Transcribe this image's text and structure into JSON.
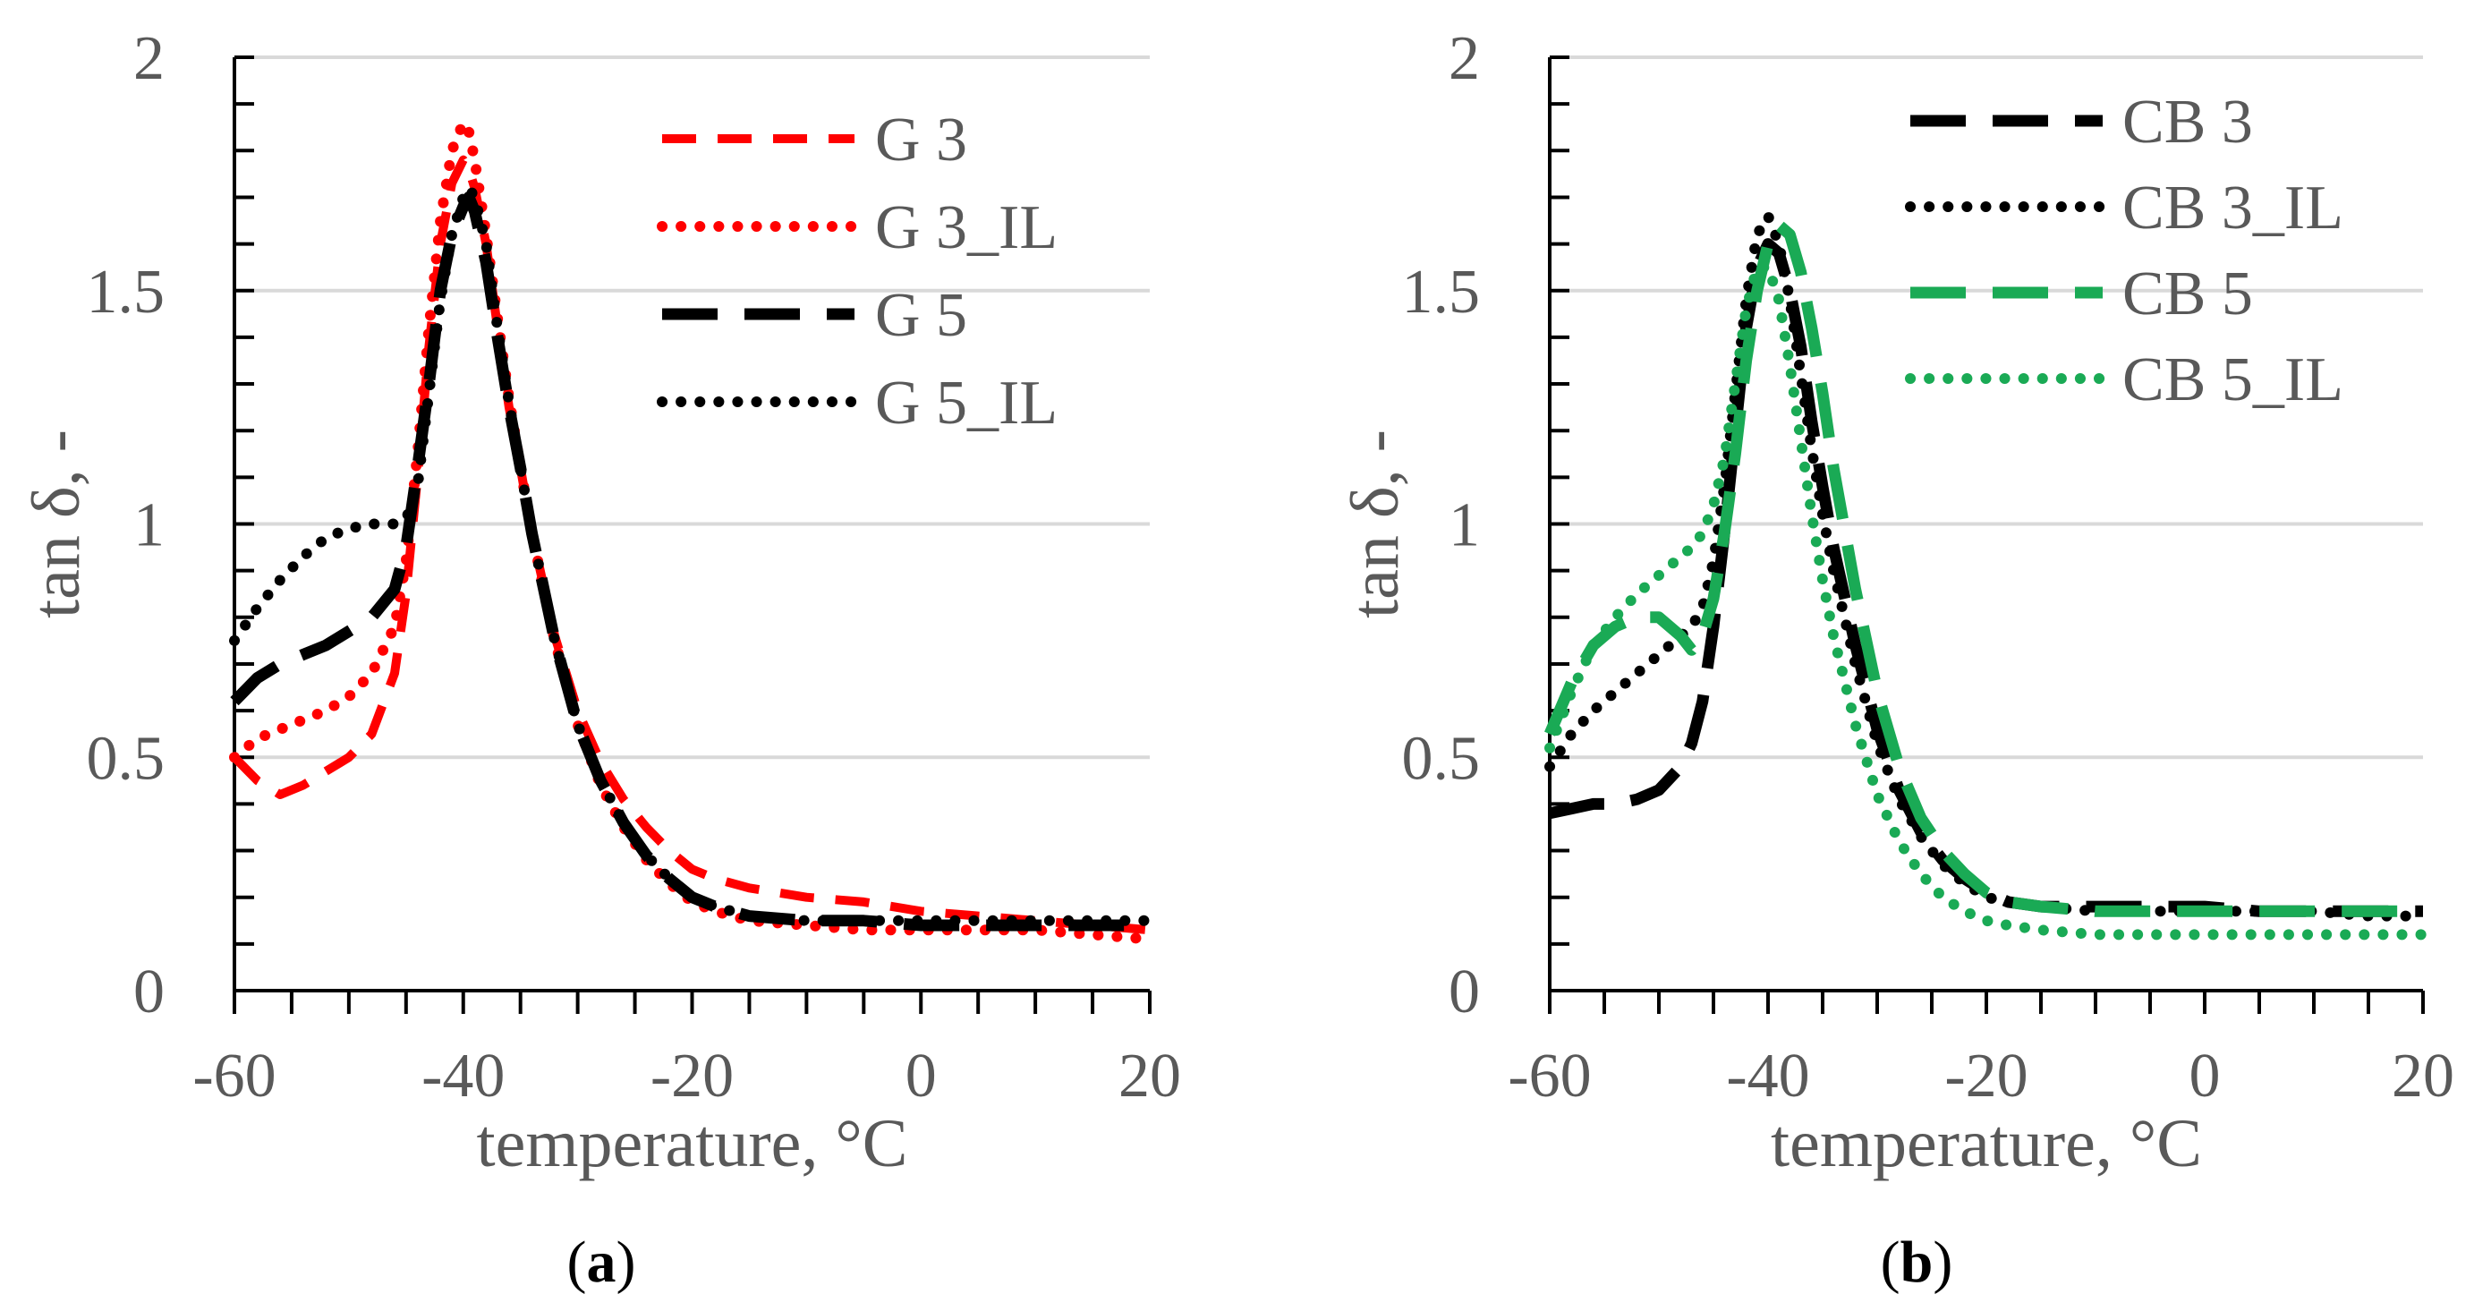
{
  "chart_data": [
    {
      "type": "line",
      "panel_label": "a",
      "xlabel": "temperature, °C",
      "ylabel": "tan δ, -",
      "xlim": [
        -60,
        20
      ],
      "ylim": [
        0,
        2
      ],
      "xticks": [
        "-60",
        "-40",
        "-20",
        "0",
        "20"
      ],
      "yticks": [
        "0",
        "0.5",
        "1",
        "1.5",
        "2"
      ],
      "grid": true,
      "legend_position": "top-right",
      "series": [
        {
          "name": "G 3",
          "color": "#ff0000",
          "dash": "dashed",
          "x": [
            -60,
            -58,
            -56,
            -54,
            -52,
            -50,
            -48,
            -46,
            -45,
            -44,
            -43,
            -42,
            -41,
            -40,
            -39.5,
            -39,
            -38,
            -37,
            -36,
            -35,
            -34,
            -32,
            -30,
            -28,
            -26,
            -24,
            -22,
            -20,
            -18,
            -15,
            -10,
            -5,
            0,
            5,
            10,
            15,
            20
          ],
          "y": [
            0.5,
            0.45,
            0.42,
            0.44,
            0.47,
            0.5,
            0.55,
            0.68,
            0.85,
            1.1,
            1.38,
            1.6,
            1.73,
            1.78,
            1.76,
            1.72,
            1.6,
            1.42,
            1.25,
            1.12,
            0.98,
            0.76,
            0.6,
            0.49,
            0.41,
            0.35,
            0.3,
            0.26,
            0.24,
            0.22,
            0.2,
            0.19,
            0.17,
            0.16,
            0.15,
            0.14,
            0.13
          ]
        },
        {
          "name": "G 3_IL",
          "color": "#ff0000",
          "dash": "dotted",
          "x": [
            -60,
            -58,
            -56,
            -54,
            -52,
            -50,
            -48,
            -46,
            -45,
            -44,
            -43,
            -42,
            -41,
            -40,
            -39.5,
            -39,
            -38,
            -37,
            -36,
            -35,
            -34,
            -32,
            -30,
            -28,
            -26,
            -24,
            -22,
            -20,
            -18,
            -15,
            -10,
            -5,
            0,
            5,
            10,
            15,
            20
          ],
          "y": [
            0.5,
            0.54,
            0.56,
            0.58,
            0.6,
            0.63,
            0.68,
            0.78,
            0.92,
            1.15,
            1.42,
            1.65,
            1.8,
            1.86,
            1.84,
            1.78,
            1.62,
            1.44,
            1.27,
            1.12,
            0.98,
            0.75,
            0.57,
            0.44,
            0.35,
            0.28,
            0.23,
            0.19,
            0.17,
            0.15,
            0.14,
            0.13,
            0.13,
            0.13,
            0.13,
            0.12,
            0.11
          ]
        },
        {
          "name": "G 5",
          "color": "#000000",
          "dash": "longdash",
          "x": [
            -60,
            -58,
            -56,
            -54,
            -52,
            -50,
            -48,
            -46,
            -45,
            -44,
            -43,
            -42,
            -41,
            -40,
            -39.5,
            -39,
            -38,
            -37,
            -36,
            -35,
            -34,
            -32,
            -30,
            -28,
            -26,
            -24,
            -22,
            -20,
            -18,
            -15,
            -10,
            -5,
            0,
            5,
            10,
            15,
            20
          ],
          "y": [
            0.62,
            0.67,
            0.7,
            0.72,
            0.74,
            0.77,
            0.8,
            0.86,
            0.95,
            1.12,
            1.3,
            1.5,
            1.62,
            1.68,
            1.7,
            1.67,
            1.56,
            1.4,
            1.25,
            1.12,
            0.98,
            0.75,
            0.57,
            0.45,
            0.36,
            0.29,
            0.24,
            0.2,
            0.18,
            0.16,
            0.15,
            0.15,
            0.14,
            0.14,
            0.14,
            0.14,
            0.14
          ]
        },
        {
          "name": "G 5_IL",
          "color": "#000000",
          "dash": "dotted",
          "x": [
            -60,
            -58,
            -56,
            -54,
            -52,
            -50,
            -48,
            -46,
            -45,
            -44,
            -43,
            -42,
            -41,
            -40,
            -39.5,
            -39,
            -38,
            -37,
            -36,
            -35,
            -34,
            -32,
            -30,
            -28,
            -26,
            -24,
            -22,
            -20,
            -18,
            -15,
            -10,
            -5,
            0,
            5,
            10,
            15,
            20
          ],
          "y": [
            0.75,
            0.82,
            0.88,
            0.93,
            0.97,
            0.99,
            1.0,
            1.0,
            1.01,
            1.08,
            1.28,
            1.48,
            1.62,
            1.7,
            1.72,
            1.7,
            1.6,
            1.42,
            1.26,
            1.12,
            0.98,
            0.75,
            0.57,
            0.45,
            0.36,
            0.29,
            0.24,
            0.2,
            0.18,
            0.16,
            0.15,
            0.15,
            0.15,
            0.15,
            0.15,
            0.15,
            0.15
          ]
        }
      ]
    },
    {
      "type": "line",
      "panel_label": "b",
      "xlabel": "temperature, °C",
      "ylabel": "tan δ, -",
      "xlim": [
        -60,
        20
      ],
      "ylim": [
        0,
        2
      ],
      "xticks": [
        "-60",
        "-40",
        "-20",
        "0",
        "20"
      ],
      "yticks": [
        "0",
        "0.5",
        "1",
        "1.5",
        "2"
      ],
      "grid": true,
      "legend_position": "top-right",
      "series": [
        {
          "name": "CB 3",
          "color": "#000000",
          "dash": "longdash",
          "x": [
            -60,
            -58,
            -56,
            -54,
            -52,
            -50,
            -48,
            -47,
            -46,
            -45,
            -44,
            -43,
            -42,
            -41,
            -40,
            -39,
            -38,
            -37,
            -36,
            -35,
            -34,
            -32,
            -30,
            -28,
            -26,
            -24,
            -22,
            -20,
            -18,
            -15,
            -10,
            -5,
            0,
            5,
            10,
            15,
            20
          ],
          "y": [
            0.38,
            0.39,
            0.4,
            0.4,
            0.41,
            0.43,
            0.48,
            0.53,
            0.62,
            0.78,
            0.98,
            1.2,
            1.42,
            1.55,
            1.6,
            1.58,
            1.5,
            1.38,
            1.22,
            1.08,
            0.95,
            0.74,
            0.56,
            0.43,
            0.34,
            0.28,
            0.24,
            0.21,
            0.19,
            0.18,
            0.18,
            0.18,
            0.18,
            0.17,
            0.17,
            0.17,
            0.17
          ]
        },
        {
          "name": "CB 3_IL",
          "color": "#000000",
          "dash": "dotted",
          "x": [
            -60,
            -58,
            -56,
            -54,
            -52,
            -50,
            -48,
            -47,
            -46,
            -45,
            -44,
            -43,
            -42,
            -41,
            -40,
            -39,
            -38,
            -37,
            -36,
            -35,
            -34,
            -32,
            -30,
            -28,
            -26,
            -24,
            -22,
            -20,
            -18,
            -15,
            -10,
            -5,
            0,
            5,
            10,
            15,
            20
          ],
          "y": [
            0.48,
            0.55,
            0.6,
            0.64,
            0.68,
            0.72,
            0.76,
            0.78,
            0.82,
            0.92,
            1.08,
            1.28,
            1.48,
            1.62,
            1.66,
            1.6,
            1.48,
            1.32,
            1.16,
            1.02,
            0.9,
            0.7,
            0.53,
            0.41,
            0.33,
            0.27,
            0.23,
            0.2,
            0.19,
            0.18,
            0.17,
            0.17,
            0.17,
            0.17,
            0.17,
            0.16,
            0.16
          ]
        },
        {
          "name": "CB 5",
          "color": "#1aaa55",
          "dash": "longdash",
          "x": [
            -60,
            -58,
            -56,
            -54,
            -52,
            -50,
            -48,
            -47,
            -46,
            -45,
            -44,
            -43,
            -42,
            -41,
            -40,
            -39,
            -38,
            -37,
            -36,
            -35,
            -34,
            -32,
            -30,
            -28,
            -26,
            -24,
            -22,
            -20,
            -18,
            -15,
            -10,
            -5,
            0,
            5,
            10,
            15,
            20
          ],
          "y": [
            0.55,
            0.66,
            0.74,
            0.78,
            0.8,
            0.8,
            0.76,
            0.73,
            0.76,
            0.84,
            0.98,
            1.15,
            1.35,
            1.5,
            1.6,
            1.64,
            1.62,
            1.54,
            1.42,
            1.28,
            1.12,
            0.86,
            0.64,
            0.48,
            0.37,
            0.3,
            0.25,
            0.21,
            0.19,
            0.18,
            0.17,
            0.17,
            0.17,
            0.17,
            0.17,
            0.17,
            0.17
          ]
        },
        {
          "name": "CB 5_IL",
          "color": "#1aaa55",
          "dash": "dotted",
          "x": [
            -60,
            -58,
            -56,
            -54,
            -52,
            -50,
            -48,
            -47,
            -46,
            -45,
            -44,
            -43,
            -42,
            -41,
            -40,
            -39,
            -38,
            -37,
            -36,
            -35,
            -34,
            -32,
            -30,
            -28,
            -26,
            -24,
            -22,
            -20,
            -18,
            -15,
            -10,
            -5,
            0,
            5,
            10,
            15,
            20
          ],
          "y": [
            0.52,
            0.64,
            0.74,
            0.8,
            0.85,
            0.89,
            0.93,
            0.95,
            0.98,
            1.04,
            1.14,
            1.3,
            1.46,
            1.55,
            1.55,
            1.48,
            1.34,
            1.18,
            1.02,
            0.88,
            0.76,
            0.57,
            0.42,
            0.32,
            0.25,
            0.2,
            0.17,
            0.15,
            0.14,
            0.13,
            0.12,
            0.12,
            0.12,
            0.12,
            0.12,
            0.12,
            0.12
          ]
        }
      ]
    }
  ]
}
